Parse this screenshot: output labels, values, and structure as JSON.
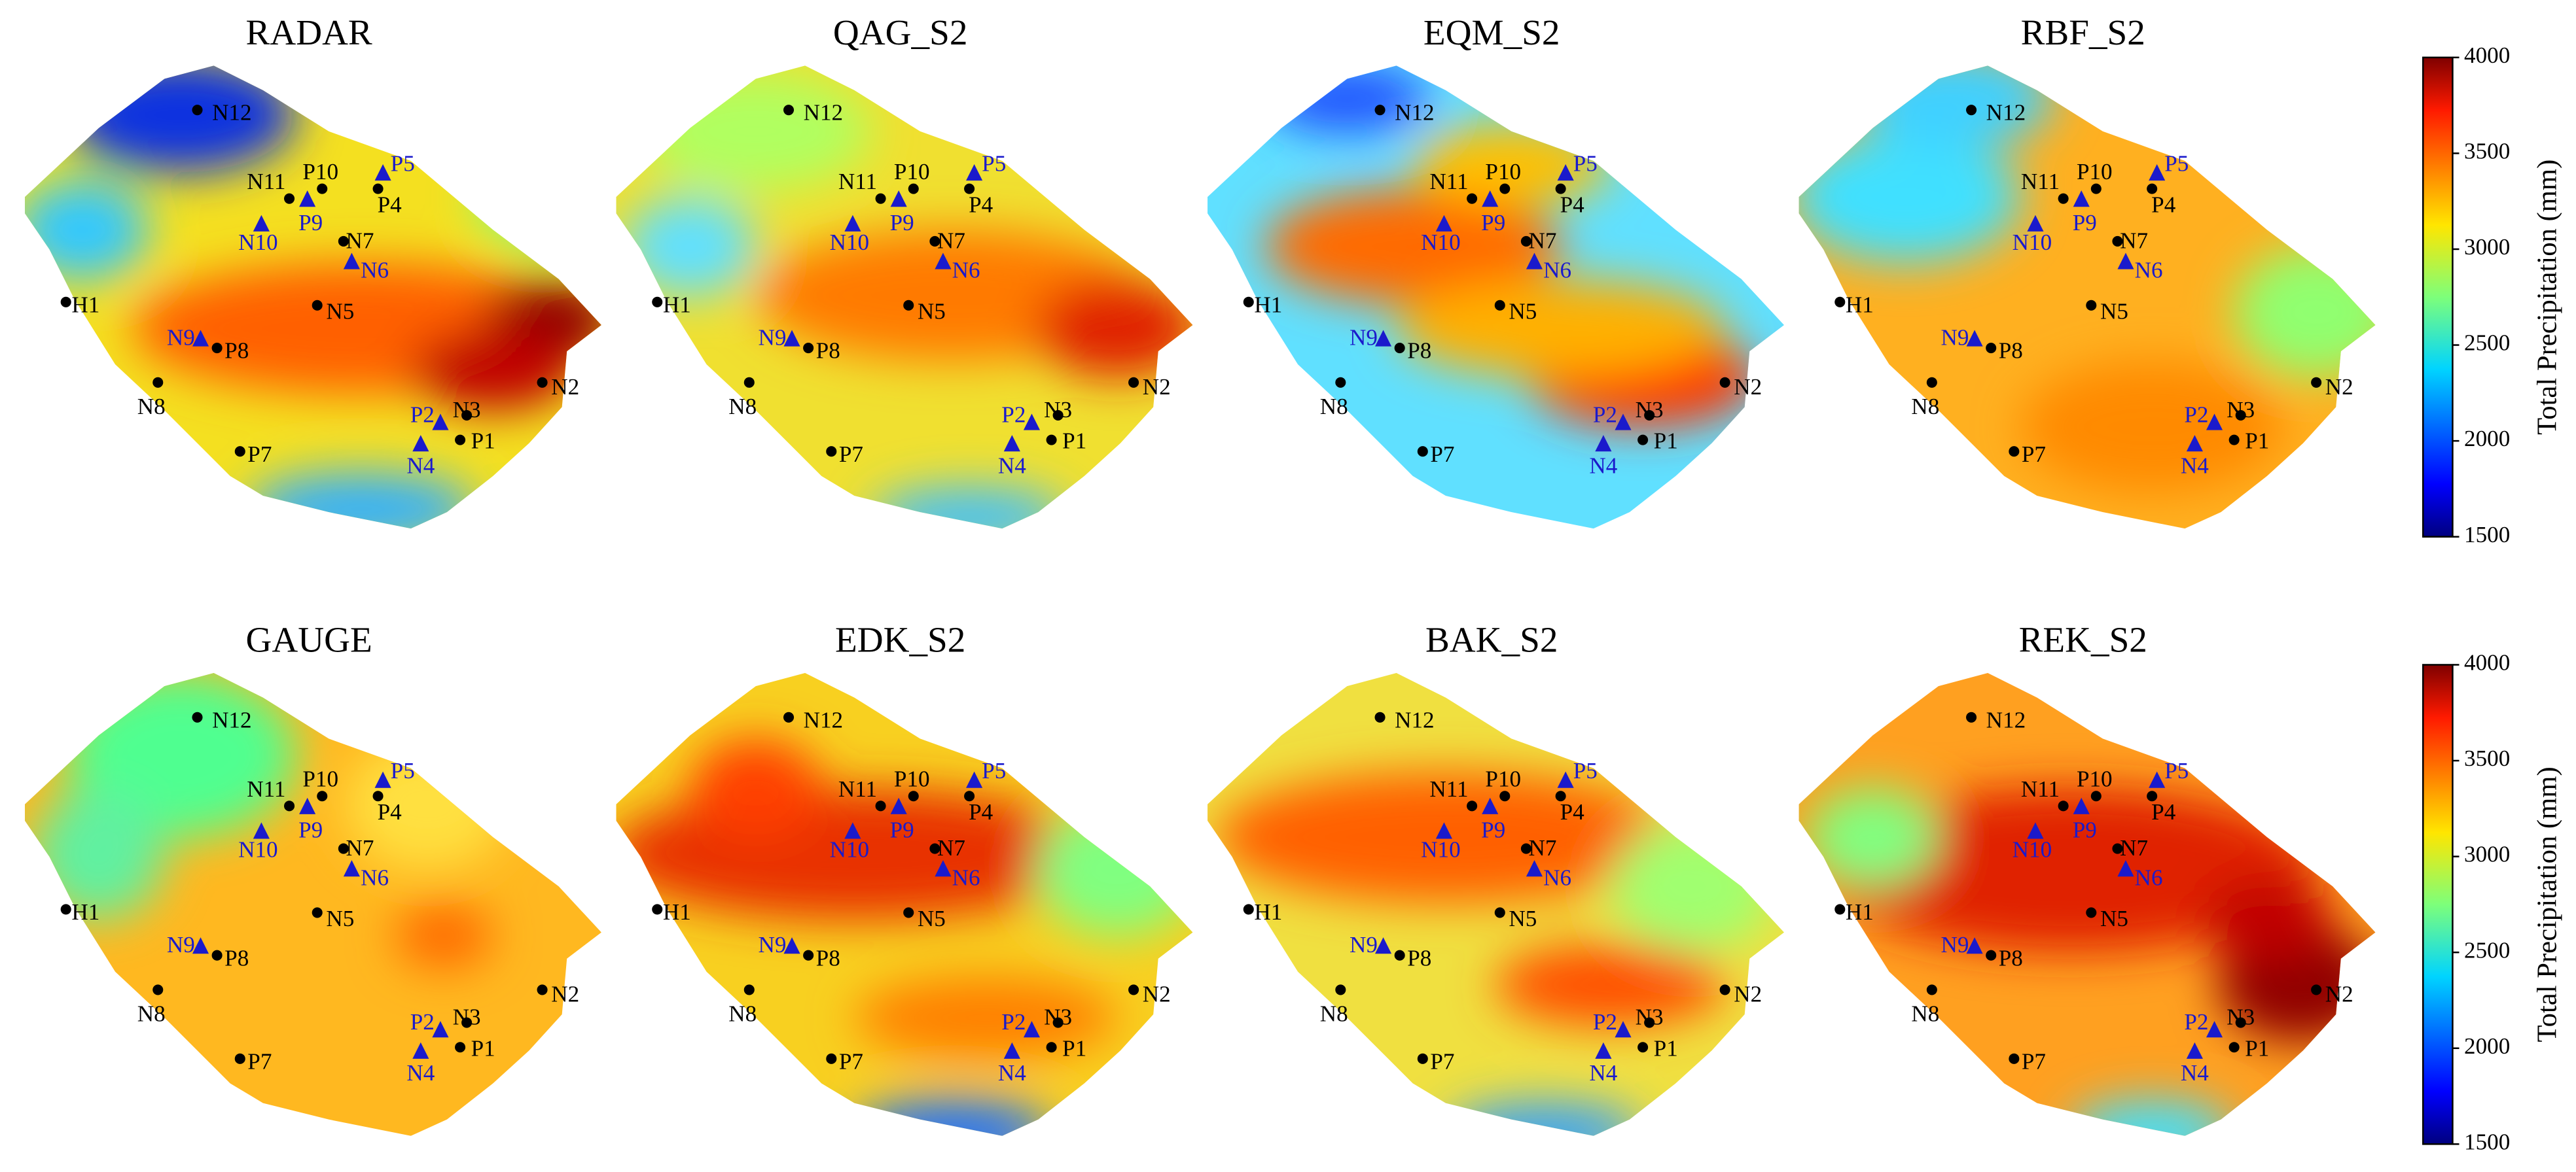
{
  "panels": [
    {
      "title": "RADAR"
    },
    {
      "title": "QAG_S2"
    },
    {
      "title": "EQM_S2"
    },
    {
      "title": "RBF_S2"
    },
    {
      "title": "GAUGE"
    },
    {
      "title": "EDK_S2"
    },
    {
      "title": "BAK_S2"
    },
    {
      "title": "REK_S2"
    }
  ],
  "stations": [
    {
      "label": "N12",
      "marker": "circle"
    },
    {
      "label": "N11",
      "marker": "circle"
    },
    {
      "label": "P10",
      "marker": "circle"
    },
    {
      "label": "P5",
      "marker": "triangle"
    },
    {
      "label": "P4",
      "marker": "circle"
    },
    {
      "label": "P9",
      "marker": "triangle"
    },
    {
      "label": "N10",
      "marker": "triangle"
    },
    {
      "label": "N7",
      "marker": "circle"
    },
    {
      "label": "N6",
      "marker": "triangle"
    },
    {
      "label": "H1",
      "marker": "circle"
    },
    {
      "label": "N5",
      "marker": "circle"
    },
    {
      "label": "N9",
      "marker": "triangle"
    },
    {
      "label": "P8",
      "marker": "circle"
    },
    {
      "label": "N8",
      "marker": "circle"
    },
    {
      "label": "N2",
      "marker": "circle"
    },
    {
      "label": "P2",
      "marker": "triangle"
    },
    {
      "label": "N3",
      "marker": "circle"
    },
    {
      "label": "P1",
      "marker": "circle"
    },
    {
      "label": "N4",
      "marker": "triangle"
    },
    {
      "label": "P7",
      "marker": "circle"
    }
  ],
  "colorbars": [
    {
      "label": "Total Precipitation (mm)",
      "lim": [
        1500,
        4000
      ],
      "ticks": [
        1500,
        2000,
        2500,
        3000,
        3500,
        4000
      ]
    },
    {
      "label": "Total Precipitation (mm)",
      "lim": [
        1500,
        4000
      ],
      "ticks": [
        1500,
        2000,
        2500,
        3000,
        3500,
        4000
      ]
    }
  ]
}
